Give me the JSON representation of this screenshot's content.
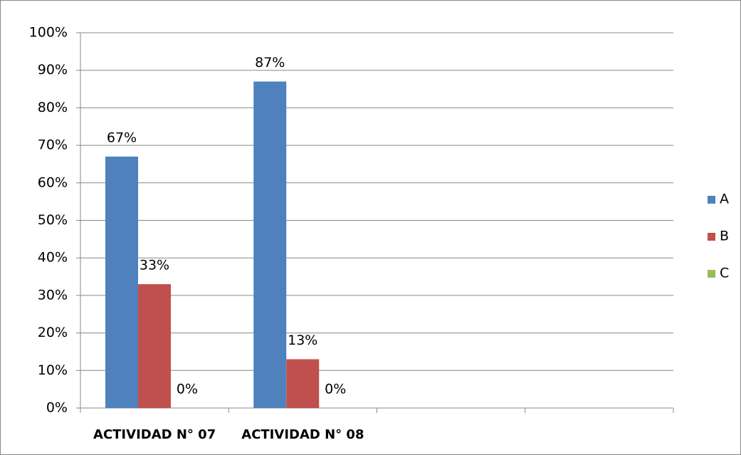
{
  "chart_data": {
    "type": "bar",
    "categories": [
      "ACTIVIDAD N° 07",
      "ACTIVIDAD N° 08",
      null,
      null
    ],
    "series": [
      {
        "name": "A",
        "color": "#4f81bd",
        "values": [
          67,
          87,
          null,
          null
        ],
        "value_labels": [
          "67%",
          "87%",
          null,
          null
        ]
      },
      {
        "name": "B",
        "color": "#c0504d",
        "values": [
          33,
          13,
          null,
          null
        ],
        "value_labels": [
          "33%",
          "13%",
          null,
          null
        ]
      },
      {
        "name": "C",
        "color": "#9bbb59",
        "values": [
          0,
          0,
          null,
          null
        ],
        "value_labels": [
          "0%",
          "0%",
          null,
          null
        ]
      }
    ],
    "ylim": [
      0,
      100
    ],
    "yticks": [
      {
        "value": 0,
        "label": "0%"
      },
      {
        "value": 10,
        "label": "10%"
      },
      {
        "value": 20,
        "label": "20%"
      },
      {
        "value": 30,
        "label": "30%"
      },
      {
        "value": 40,
        "label": "40%"
      },
      {
        "value": 50,
        "label": "50%"
      },
      {
        "value": 60,
        "label": "60%"
      },
      {
        "value": 70,
        "label": "70%"
      },
      {
        "value": 80,
        "label": "80%"
      },
      {
        "value": 90,
        "label": "90%"
      },
      {
        "value": 100,
        "label": "100%"
      }
    ],
    "grid": true,
    "legend": "right"
  }
}
